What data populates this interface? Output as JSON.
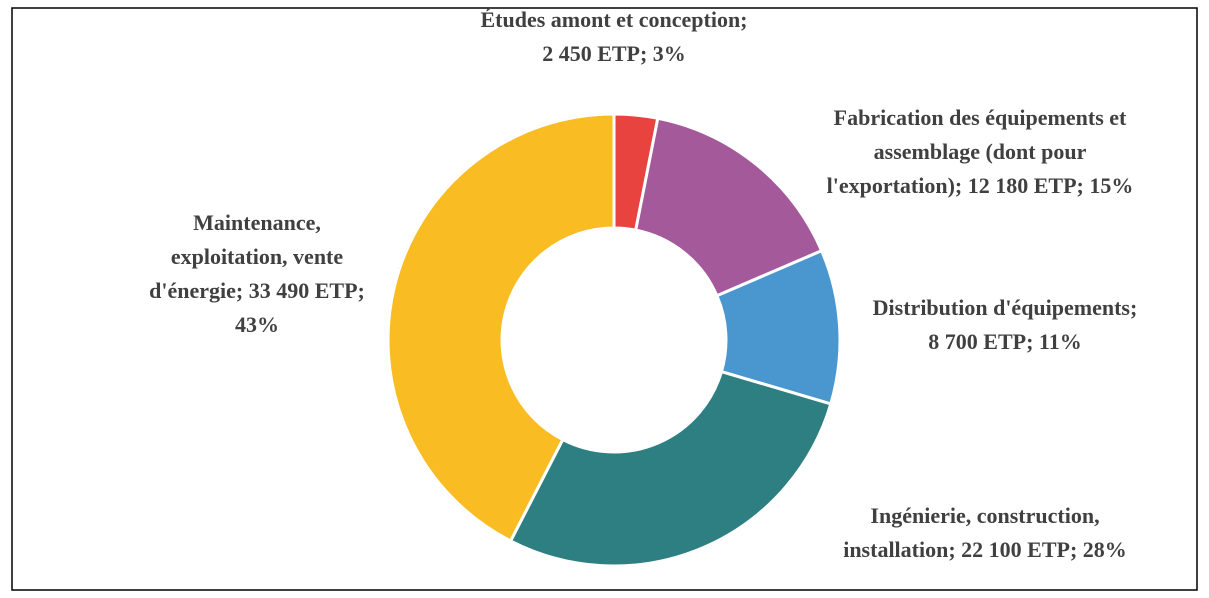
{
  "chart_data": {
    "type": "donut",
    "labels": [
      [
        "Études amont et conception;",
        "2 450 ETP; 3%"
      ],
      [
        "Fabrication des équipements et",
        "assemblage (dont pour",
        "l'exportation); 12 180 ETP; 15%"
      ],
      [
        "Distribution d'équipements;",
        "8 700 ETP; 11%"
      ],
      [
        "Ingénierie, construction,",
        "installation; 22 100 ETP; 28%"
      ],
      [
        "Maintenance,",
        "exploitation, vente",
        "d'énergie; 33 490 ETP;",
        "43%"
      ]
    ],
    "values": [
      2450,
      12180,
      8700,
      22100,
      33490
    ],
    "colors": [
      "#e8433f",
      "#a45a9a",
      "#4a96cf",
      "#2e7f82",
      "#f9bc22"
    ]
  }
}
